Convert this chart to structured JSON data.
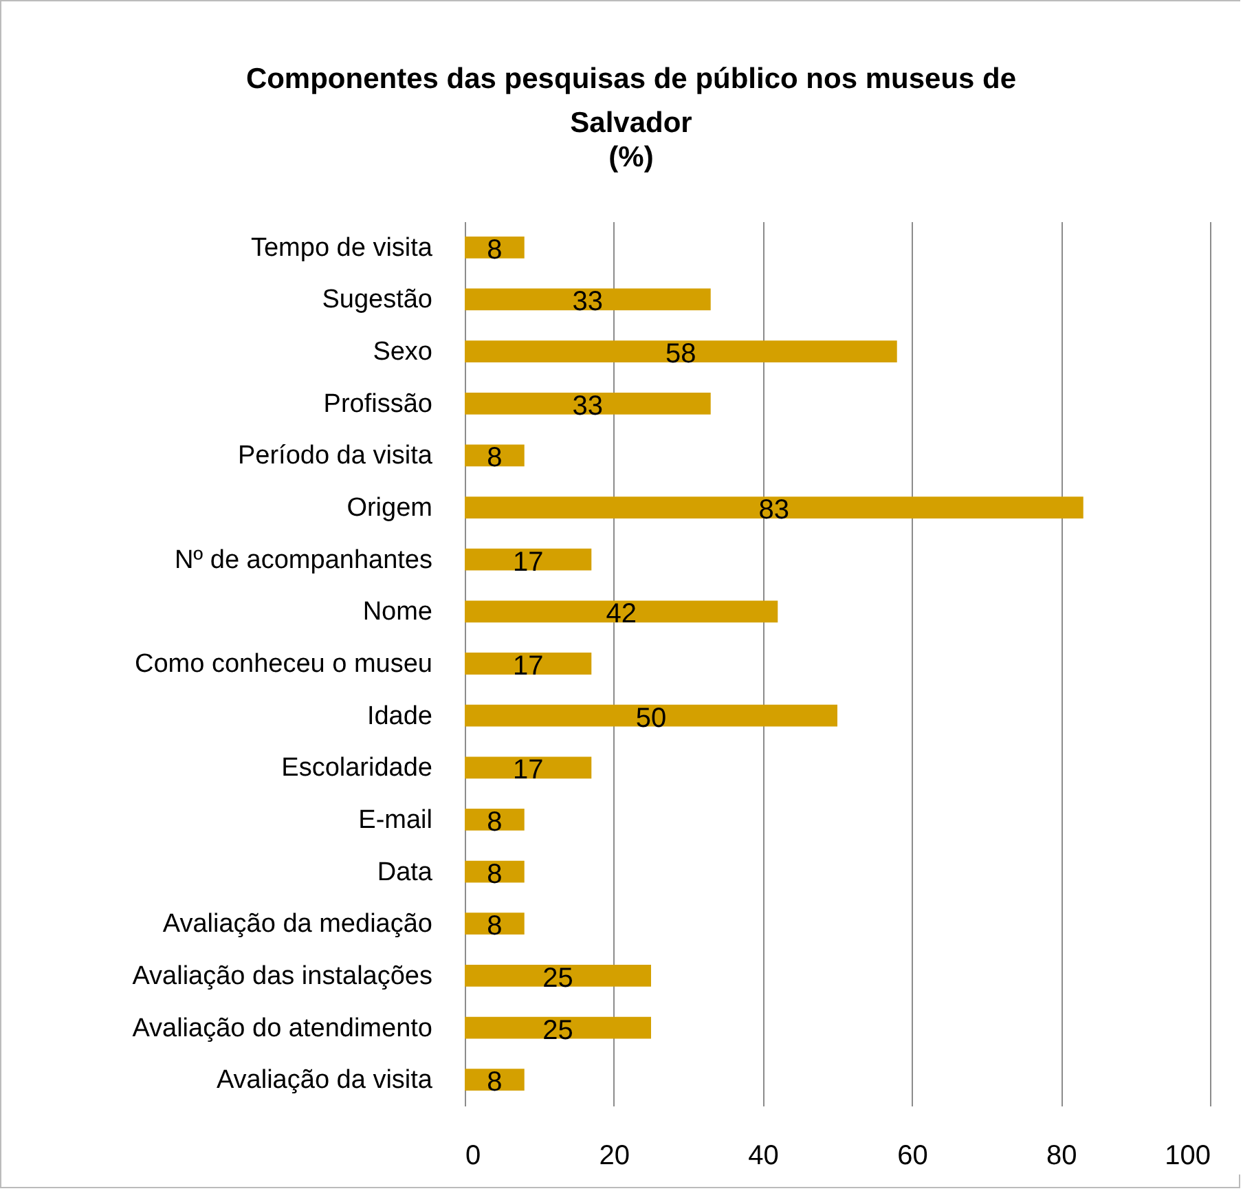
{
  "chart_data": {
    "type": "bar",
    "orientation": "horizontal",
    "title": "Componentes das pesquisas de público nos museus de Salvador",
    "subtitle": "(%)",
    "categories": [
      "Tempo de visita",
      "Sugestão",
      "Sexo",
      "Profissão",
      "Período da visita",
      "Origem",
      "Nº de acompanhantes",
      "Nome",
      "Como conheceu o museu",
      "Idade",
      "Escolaridade",
      "E-mail",
      "Data",
      "Avaliação da mediação",
      "Avaliação das instalações",
      "Avaliação do atendimento",
      "Avaliação da visita"
    ],
    "values": [
      8,
      33,
      58,
      33,
      8,
      83,
      17,
      42,
      17,
      50,
      17,
      8,
      8,
      8,
      25,
      25,
      8
    ],
    "color": "#d4a000",
    "xlim": [
      0,
      100
    ],
    "xticks": [
      0,
      20,
      40,
      60,
      80,
      100
    ],
    "grid": "x",
    "data_labels": true
  }
}
